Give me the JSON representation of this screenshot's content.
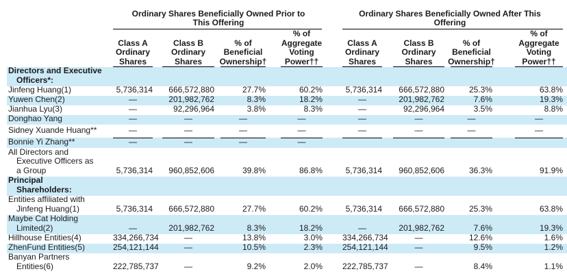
{
  "table": {
    "group_headers": [
      {
        "line1": "Ordinary Shares Beneficially Owned Prior to",
        "line2": "This Offering"
      },
      {
        "line1": "Ordinary Shares Beneficially Owned After This",
        "line2": "Offering"
      }
    ],
    "column_headers": [
      {
        "l1": "",
        "l2": "Class A",
        "l3": "Ordinary",
        "l4": "Shares"
      },
      {
        "l1": "",
        "l2": "Class B",
        "l3": "Ordinary",
        "l4": "Shares"
      },
      {
        "l1": "",
        "l2": "% of",
        "l3": "Beneficial",
        "l4": "Ownership†"
      },
      {
        "l1": "% of",
        "l2": "Aggregate",
        "l3": "Voting",
        "l4": "Power††"
      },
      {
        "l1": "",
        "l2": "Class A",
        "l3": "Ordinary",
        "l4": "Shares"
      },
      {
        "l1": "",
        "l2": "Class B",
        "l3": "Ordinary",
        "l4": "Shares"
      },
      {
        "l1": "",
        "l2": "% of",
        "l3": "Beneficial",
        "l4": "Ownership†"
      },
      {
        "l1": "% of",
        "l2": "Aggregate",
        "l3": "Voting",
        "l4": "Power††"
      }
    ],
    "rows": [
      {
        "label": [
          "Directors and Executive",
          "Officers*:"
        ],
        "section": true,
        "values": [
          "",
          "",
          "",
          "",
          "",
          "",
          "",
          ""
        ]
      },
      {
        "label": [
          "Jinfeng Huang(1)"
        ],
        "values": [
          "5,736,314",
          "666,572,880",
          "27.7%",
          "60.2%",
          "5,736,314",
          "666,572,880",
          "25.3%",
          "63.8%"
        ]
      },
      {
        "label": [
          "Yuwen Chen(2)"
        ],
        "values": [
          "—",
          "201,982,762",
          "8.3%",
          "18.2%",
          "—",
          "201,982,762",
          "7.6%",
          "19.3%"
        ]
      },
      {
        "label": [
          "Jianhua Lyu(3)"
        ],
        "values": [
          "—",
          "92,296,964",
          "3.8%",
          "8.3%",
          "—",
          "92,296,964",
          "3.5%",
          "8.8%"
        ]
      },
      {
        "label": [
          "Donghao Yang"
        ],
        "values": [
          "—",
          "—",
          "—",
          "—",
          "—",
          "—",
          "—",
          "—"
        ]
      },
      {
        "label": [
          "Sidney Xuande Huang**"
        ],
        "values": [
          "—",
          "—",
          "—",
          "—",
          "—",
          "—",
          "—",
          "—"
        ]
      },
      {
        "label": [
          "Bonnie Yi Zhang**"
        ],
        "values": [
          "—",
          "—",
          "—",
          "—",
          "",
          "",
          "",
          ""
        ]
      },
      {
        "label": [
          "All Directors and",
          "Executive Officers as",
          "a Group"
        ],
        "values": [
          "5,736,314",
          "960,852,606",
          "39.8%",
          "86.8%",
          "5,736,314",
          "960,852,606",
          "36.3%",
          "91.9%"
        ]
      },
      {
        "label": [
          "Principal",
          "Shareholders:"
        ],
        "section": true,
        "values": [
          "",
          "",
          "",
          "",
          "",
          "",
          "",
          ""
        ]
      },
      {
        "label": [
          "Entities affiliated with",
          "Jinfeng Huang(1)"
        ],
        "values": [
          "5,736,314",
          "666,572,880",
          "27.7%",
          "60.2%",
          "5,736,314",
          "666,572,880",
          "25.3%",
          "63.8%"
        ]
      },
      {
        "label": [
          "Maybe Cat Holding",
          "Limited(2)"
        ],
        "values": [
          "—",
          "201,982,762",
          "8.3%",
          "18.2%",
          "—",
          "201,982,762",
          "7.6%",
          "19.3%"
        ]
      },
      {
        "label": [
          "Hillhouse Entities(4)"
        ],
        "values": [
          "334,266,734",
          "—",
          "13.8%",
          "3.0%",
          "334,266,734",
          "—",
          "12.6%",
          "1.6%"
        ]
      },
      {
        "label": [
          "ZhenFund Entities(5)"
        ],
        "values": [
          "254,121,144",
          "—",
          "10.5%",
          "2.3%",
          "254,121,144",
          "—",
          "9.5%",
          "1.2%"
        ]
      },
      {
        "label": [
          "Banyan Partners",
          "Entities(6)"
        ],
        "values": [
          "222,785,737",
          "—",
          "9.2%",
          "2.0%",
          "222,785,737",
          "—",
          "8.4%",
          "1.1%"
        ]
      }
    ]
  }
}
